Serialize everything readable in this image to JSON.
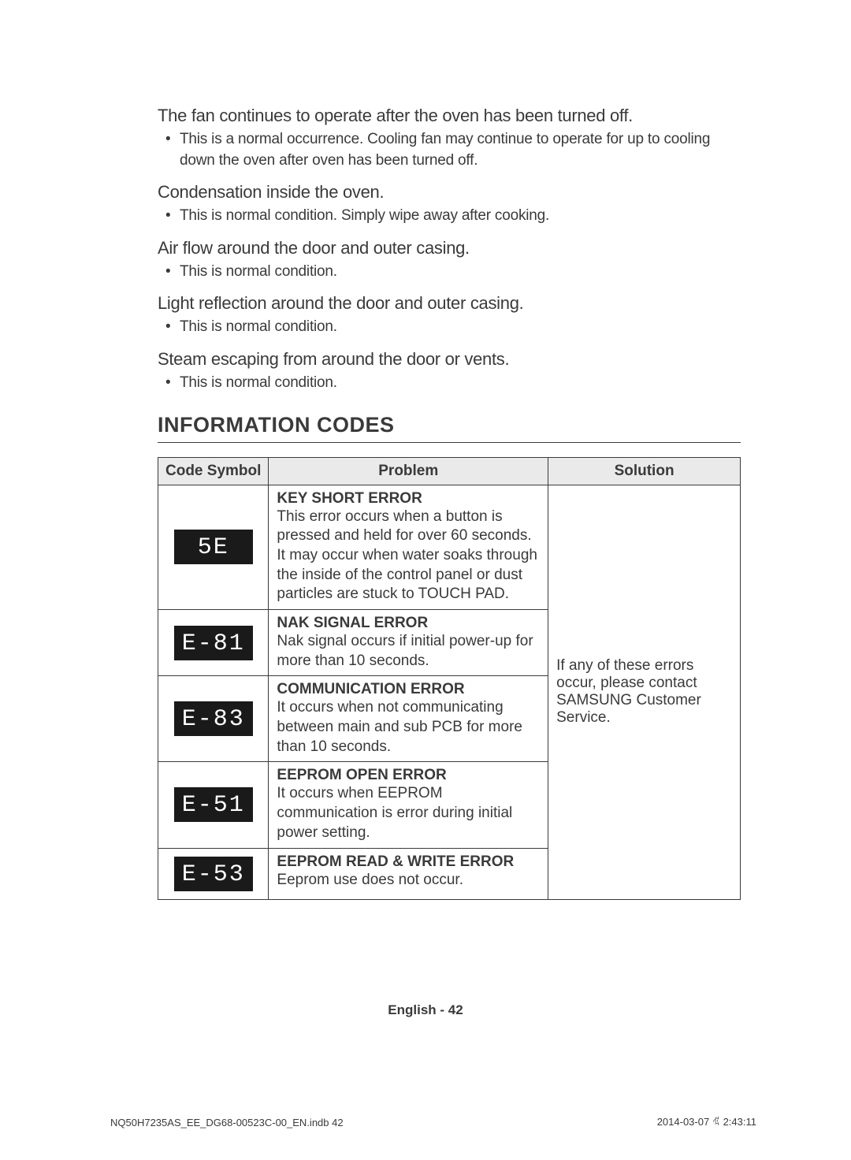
{
  "faq": [
    {
      "q": "The fan continues to operate after the oven has been turned off.",
      "a": "This is a normal occurrence. Cooling fan may continue to operate for up to cooling down the oven after oven has been turned off."
    },
    {
      "q": "Condensation inside the oven.",
      "a": "This is normal condition. Simply wipe away after cooking."
    },
    {
      "q": "Air flow around the door and outer casing.",
      "a": "This is normal condition."
    },
    {
      "q": "Light reflection around the door and outer casing.",
      "a": "This is normal condition."
    },
    {
      "q": "Steam escaping from around the door or vents.",
      "a": "This is normal condition."
    }
  ],
  "section_title": "INFORMATION CODES",
  "table": {
    "headers": {
      "code": "Code Symbol",
      "problem": "Problem",
      "solution": "Solution"
    },
    "col_widths": {
      "code": "19%",
      "problem": "48%",
      "solution": "33%"
    },
    "header_bg": "#eaeaea",
    "border_color": "#3a3a3a",
    "rows": [
      {
        "code": "5E",
        "title": "KEY SHORT ERROR",
        "desc": "This error occurs when a button is pressed and held for over 60 seconds. It may occur when water soaks through the inside of the control panel or dust particles are stuck to TOUCH PAD."
      },
      {
        "code": "E-81",
        "title": "NAK SIGNAL ERROR",
        "desc": "Nak signal occurs if initial power-up for more than 10 seconds."
      },
      {
        "code": "E-83",
        "title": "COMMUNICATION ERROR",
        "desc": "It occurs when not communicating between main and sub PCB for more than 10 seconds."
      },
      {
        "code": "E-51",
        "title": "EEPROM OPEN ERROR",
        "desc": "It occurs when EEPROM communication is error during initial power setting."
      },
      {
        "code": "E-53",
        "title": "EEPROM READ & WRITE ERROR",
        "desc": "Eeprom use does not occur."
      }
    ],
    "solution_text": "If any of these errors occur, please contact SAMSUNG Customer Service."
  },
  "code_badge": {
    "bg": "#1a1a1a",
    "fg": "#ffffff"
  },
  "footer": {
    "lang": "English",
    "page": "42",
    "sep": " - "
  },
  "print": {
    "file": "NQ50H7235AS_EE_DG68-00523C-00_EN.indb   42",
    "date": "2014-03-07   ꂁ 2:43:11"
  }
}
